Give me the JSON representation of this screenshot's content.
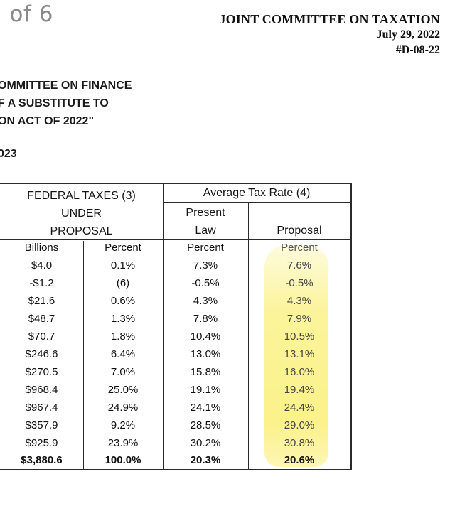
{
  "page_counter": "l of 6",
  "agency": {
    "name": "JOINT COMMITTEE ON TAXATION",
    "date": "July 29, 2022",
    "doc_number": "#D-08-22"
  },
  "heading": {
    "line1": "OMMITTEE ON FINANCE",
    "line2": "F A SUBSTITUTE TO",
    "line3": "ON ACT OF 2022\""
  },
  "year_label": "023",
  "table": {
    "group_federal": [
      "FEDERAL TAXES (3)",
      "UNDER",
      "PROPOSAL"
    ],
    "group_rate": "Average Tax Rate (4)",
    "present_law": [
      "Present",
      "Law"
    ],
    "proposal": "Proposal",
    "subheaders": [
      "Billions",
      "Percent",
      "Percent",
      "Percent"
    ],
    "rows": [
      [
        "$4.0",
        "0.1%",
        "7.3%",
        "7.6%"
      ],
      [
        "-$1.2",
        "(6)",
        "-0.5%",
        "-0.5%"
      ],
      [
        "$21.6",
        "0.6%",
        "4.3%",
        "4.3%"
      ],
      [
        "$48.7",
        "1.3%",
        "7.8%",
        "7.9%"
      ],
      [
        "$70.7",
        "1.8%",
        "10.4%",
        "10.5%"
      ],
      [
        "$246.6",
        "6.4%",
        "13.0%",
        "13.1%"
      ],
      [
        "$270.5",
        "7.0%",
        "15.8%",
        "16.0%"
      ],
      [
        "$968.4",
        "25.0%",
        "19.1%",
        "19.4%"
      ],
      [
        "$967.4",
        "24.9%",
        "24.1%",
        "24.4%"
      ],
      [
        "$357.9",
        "9.2%",
        "28.5%",
        "29.0%"
      ],
      [
        "$925.9",
        "23.9%",
        "30.2%",
        "30.8%"
      ]
    ],
    "total": [
      "$3,880.6",
      "100.0%",
      "20.3%",
      "20.6%"
    ]
  }
}
